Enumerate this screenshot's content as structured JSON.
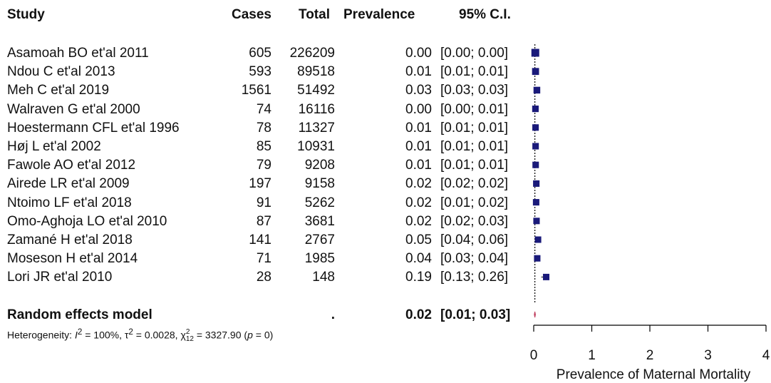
{
  "header": {
    "study": "Study",
    "cases": "Cases",
    "total": "Total",
    "prevalence": "Prevalence",
    "ci": "95% C.I."
  },
  "chart_data": {
    "type": "forest",
    "xlabel": "Prevalence of Maternal Mortality",
    "xlim": [
      0,
      4
    ],
    "xticks": [
      "0",
      "1",
      "2",
      "3",
      "4"
    ],
    "studies": [
      {
        "study": "Asamoah BO et'al 2011",
        "cases": "605",
        "total": "226209",
        "prevalence": "0.00",
        "ci": "[0.00; 0.00]",
        "estimate": 0.003,
        "lower": 0.0,
        "upper": 0.0
      },
      {
        "study": "Ndou C et'al 2013",
        "cases": "593",
        "total": "89518",
        "prevalence": "0.01",
        "ci": "[0.01; 0.01]",
        "estimate": 0.007,
        "lower": 0.01,
        "upper": 0.01
      },
      {
        "study": "Meh C et'al 2019",
        "cases": "1561",
        "total": "51492",
        "prevalence": "0.03",
        "ci": "[0.03; 0.03]",
        "estimate": 0.03,
        "lower": 0.03,
        "upper": 0.03
      },
      {
        "study": "Walraven G et'al 2000",
        "cases": "74",
        "total": "16116",
        "prevalence": "0.00",
        "ci": "[0.00; 0.01]",
        "estimate": 0.005,
        "lower": 0.0,
        "upper": 0.01
      },
      {
        "study": "Hoestermann CFL et'al 1996",
        "cases": "78",
        "total": "11327",
        "prevalence": "0.01",
        "ci": "[0.01; 0.01]",
        "estimate": 0.007,
        "lower": 0.01,
        "upper": 0.01
      },
      {
        "study": "Høj L et'al 2002",
        "cases": "85",
        "total": "10931",
        "prevalence": "0.01",
        "ci": "[0.01; 0.01]",
        "estimate": 0.008,
        "lower": 0.01,
        "upper": 0.01
      },
      {
        "study": "Fawole AO et'al 2012",
        "cases": "79",
        "total": "9208",
        "prevalence": "0.01",
        "ci": "[0.01; 0.01]",
        "estimate": 0.009,
        "lower": 0.01,
        "upper": 0.01
      },
      {
        "study": "Airede LR et'al 2009",
        "cases": "197",
        "total": "9158",
        "prevalence": "0.02",
        "ci": "[0.02; 0.02]",
        "estimate": 0.02,
        "lower": 0.02,
        "upper": 0.02
      },
      {
        "study": "Ntoimo LF et'al 2018",
        "cases": "91",
        "total": "5262",
        "prevalence": "0.02",
        "ci": "[0.01; 0.02]",
        "estimate": 0.017,
        "lower": 0.01,
        "upper": 0.02
      },
      {
        "study": "Omo-Aghoja LO et'al 2010",
        "cases": "87",
        "total": "3681",
        "prevalence": "0.02",
        "ci": "[0.02; 0.03]",
        "estimate": 0.024,
        "lower": 0.02,
        "upper": 0.03
      },
      {
        "study": "Zamané H et'al 2018",
        "cases": "141",
        "total": "2767",
        "prevalence": "0.05",
        "ci": "[0.04; 0.06]",
        "estimate": 0.05,
        "lower": 0.04,
        "upper": 0.06
      },
      {
        "study": "Moseson H et'al 2014",
        "cases": "71",
        "total": "1985",
        "prevalence": "0.04",
        "ci": "[0.03; 0.04]",
        "estimate": 0.036,
        "lower": 0.03,
        "upper": 0.04
      },
      {
        "study": "Lori JR et'al 2010",
        "cases": "28",
        "total": "148",
        "prevalence": "0.19",
        "ci": "[0.13; 0.26]",
        "estimate": 0.19,
        "lower": 0.13,
        "upper": 0.26
      }
    ],
    "summary": {
      "study": "Random effects model",
      "cases": "",
      "total": ".",
      "prevalence": "0.02",
      "ci": "[0.01; 0.03]",
      "estimate": 0.02,
      "lower": 0.01,
      "upper": 0.03
    },
    "heterogeneity": {
      "prefix": "Heterogeneity: ",
      "i2_label": "I",
      "i2_value": " = 100%, ",
      "tau_label": "τ",
      "tau_value": " = 0.0028, ",
      "chi_label": "χ",
      "chi_df": "12",
      "chi_value": " = 3327.90 (",
      "p_label": "p",
      "p_value": " = 0)",
      "sup": "2"
    },
    "colors": {
      "box": "#1a1a7a",
      "diamond": "#c04060",
      "line": "#000000"
    }
  }
}
